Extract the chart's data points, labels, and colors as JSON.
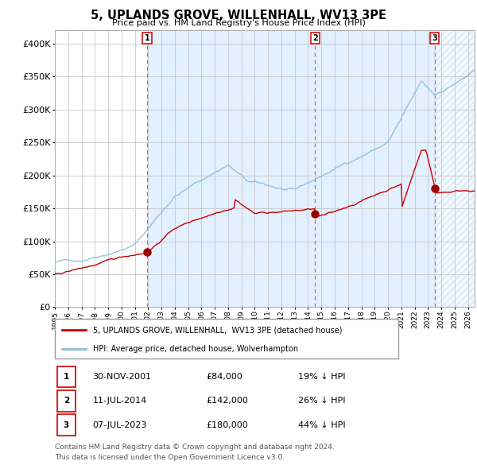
{
  "title": "5, UPLANDS GROVE, WILLENHALL, WV13 3PE",
  "subtitle": "Price paid vs. HM Land Registry's House Price Index (HPI)",
  "ylabel_ticks": [
    "£0",
    "£50K",
    "£100K",
    "£150K",
    "£200K",
    "£250K",
    "£300K",
    "£350K",
    "£400K"
  ],
  "ytick_values": [
    0,
    50000,
    100000,
    150000,
    200000,
    250000,
    300000,
    350000,
    400000
  ],
  "ylim": [
    0,
    420000
  ],
  "xlim_start": 1995.0,
  "xlim_end": 2026.5,
  "hpi_color": "#8bbcda",
  "property_color": "#cc0000",
  "sale_marker_color": "#990000",
  "dashed_line_color": "#ff5555",
  "shading_color": "#ddeeff",
  "sale1_year": 2001.92,
  "sale1_price": 84000,
  "sale1_label": "30-NOV-2001",
  "sale1_amount": "£84,000",
  "sale1_pct": "19% ↓ HPI",
  "sale2_year": 2014.53,
  "sale2_price": 142000,
  "sale2_label": "11-JUL-2014",
  "sale2_amount": "£142,000",
  "sale2_pct": "26% ↓ HPI",
  "sale3_year": 2023.51,
  "sale3_price": 180000,
  "sale3_label": "07-JUL-2023",
  "sale3_amount": "£180,000",
  "sale3_pct": "44% ↓ HPI",
  "legend_property": "5, UPLANDS GROVE, WILLENHALL,  WV13 3PE (detached house)",
  "legend_hpi": "HPI: Average price, detached house, Wolverhampton",
  "footer1": "Contains HM Land Registry data © Crown copyright and database right 2024.",
  "footer2": "This data is licensed under the Open Government Licence v3.0."
}
